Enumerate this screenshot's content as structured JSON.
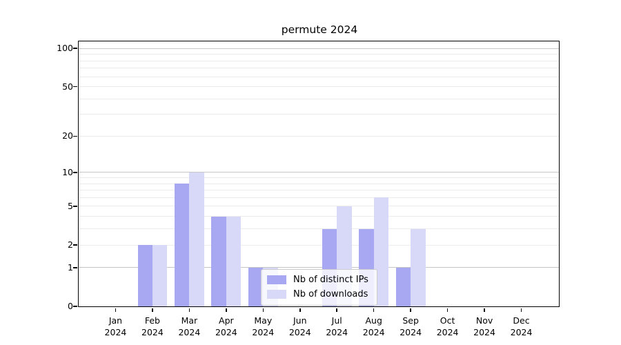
{
  "title": "permute 2024",
  "chart_data": {
    "type": "bar",
    "title": "permute 2024",
    "categories": [
      "Jan 2024",
      "Feb 2024",
      "Mar 2024",
      "Apr 2024",
      "May 2024",
      "Jun 2024",
      "Jul 2024",
      "Aug 2024",
      "Sep 2024",
      "Oct 2024",
      "Nov 2024",
      "Dec 2024"
    ],
    "x_tick_months": [
      "Jan",
      "Feb",
      "Mar",
      "Apr",
      "May",
      "Jun",
      "Jul",
      "Aug",
      "Sep",
      "Oct",
      "Nov",
      "Dec"
    ],
    "x_tick_year": "2024",
    "series": [
      {
        "name": "Nb of distinct IPs",
        "slug": "distinct-ips",
        "color": "#a8a8f2",
        "values": [
          0,
          2,
          8,
          4,
          1,
          0,
          3,
          3,
          1,
          0,
          0,
          0
        ]
      },
      {
        "name": "Nb of downloads",
        "slug": "downloads",
        "color": "#d8d8f9",
        "values": [
          0,
          2,
          10,
          4,
          1,
          0,
          5,
          6,
          3,
          0,
          0,
          0
        ]
      }
    ],
    "xlabel": "",
    "ylabel": "",
    "y_scale": "log1p",
    "ylim": [
      0,
      113
    ],
    "y_axis": {
      "tick_values": [
        0,
        1,
        2,
        5,
        10,
        20,
        50,
        100
      ],
      "tick_labels": [
        "0",
        "1",
        "2",
        "5",
        "10",
        "20",
        "50",
        "100"
      ],
      "minor_gridline_values": [
        3,
        4,
        6,
        7,
        8,
        9,
        30,
        40,
        60,
        70,
        80,
        90
      ],
      "emphasized_gridline_values": [
        1,
        10,
        100
      ]
    },
    "grid": true,
    "legend_position": "lower center"
  },
  "legend": {
    "items": [
      {
        "label": "Nb of distinct IPs",
        "color": "#a8a8f2"
      },
      {
        "label": "Nb of downloads",
        "color": "#d8d8f9"
      }
    ]
  },
  "colors": {
    "background": "#ffffff",
    "spine": "#000000",
    "major_grid": "#c6c6c6",
    "minor_grid": "#ececec",
    "bar_dark": "#a8a8f2",
    "bar_light": "#d8d8f9"
  }
}
